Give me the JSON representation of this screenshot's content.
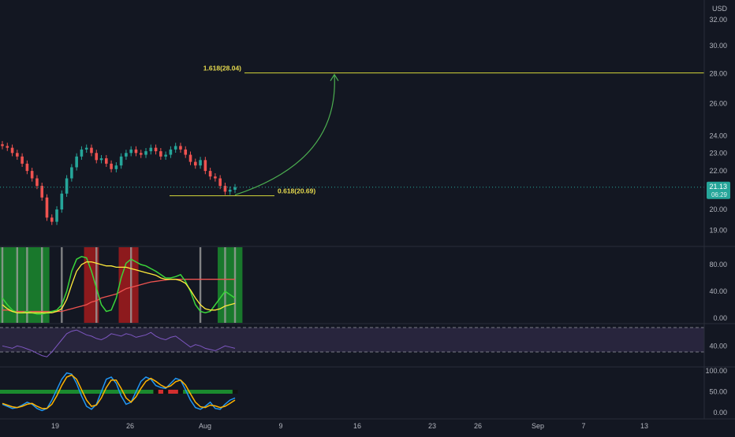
{
  "colors": {
    "background": "#131722",
    "border": "#2a2e39",
    "axis_text": "#b2b5be",
    "up": "#26a69a",
    "down": "#ef5350",
    "fib": "#d4d63a",
    "fib_text": "#e5d94e",
    "arrow": "#4caf50",
    "price_badge": "#26a69a",
    "rsi": "#7e57c2",
    "rsi_band": "#2b2740",
    "green_zone": "#1b8a2e",
    "red_zone": "#b71c1c",
    "gray_zone": "#9e9e9e",
    "stoch_k": "#2196f3",
    "stoch_d": "#ffb300",
    "ribbon_green": "#1b8a2e",
    "ribbon_red": "#d32f2f",
    "ribbon_black": "#111111"
  },
  "chart_data": {
    "type": "candlestick",
    "currency": "USD",
    "price_axis": {
      "ticks": [
        "32.00",
        "30.00",
        "28.00",
        "26.00",
        "24.00",
        "23.00",
        "22.00",
        "20.00",
        "19.00"
      ],
      "scale": "log"
    },
    "time_axis": {
      "labels": [
        "19",
        "26",
        "Aug",
        "9",
        "16",
        "23",
        "26",
        "Sep",
        "7",
        "13"
      ]
    },
    "last_price": {
      "value": "21.13",
      "countdown": "06:29"
    },
    "fib_levels": [
      {
        "label": "1.618(28.04)",
        "price": 28.04
      },
      {
        "label": "0.618(20.69)",
        "price": 20.69
      }
    ],
    "projection_arrow": {
      "from_price": 20.69,
      "to_price": 28.04
    },
    "price_path": [
      23.4,
      23.3,
      23.0,
      22.8,
      22.4,
      22.0,
      21.6,
      21.2,
      20.6,
      19.6,
      19.4,
      20.0,
      20.8,
      21.6,
      22.2,
      22.8,
      23.2,
      23.3,
      23.0,
      22.6,
      22.7,
      22.4,
      22.1,
      22.3,
      22.8,
      23.0,
      23.2,
      23.0,
      22.9,
      23.1,
      23.3,
      23.1,
      22.8,
      22.9,
      23.2,
      23.4,
      23.2,
      22.9,
      22.5,
      22.3,
      22.6,
      22.0,
      21.7,
      21.6,
      21.2,
      20.9,
      21.0,
      21.13
    ],
    "oscillator_panel": {
      "ticks": [
        "80.00",
        "40.00",
        "0.00"
      ],
      "green_zones": [
        [
          0,
          4
        ],
        [
          5,
          9
        ],
        [
          44,
          48
        ]
      ],
      "red_zones": [
        [
          17,
          19
        ],
        [
          24,
          27
        ]
      ],
      "gray_bars": [
        0,
        3,
        5,
        8,
        12,
        19,
        26,
        40,
        45,
        47
      ],
      "line_green": [
        30,
        20,
        12,
        8,
        8,
        10,
        8,
        6,
        6,
        8,
        10,
        12,
        20,
        40,
        70,
        88,
        92,
        90,
        70,
        45,
        20,
        10,
        12,
        30,
        60,
        82,
        88,
        84,
        80,
        78,
        74,
        70,
        65,
        60,
        60,
        62,
        65,
        55,
        40,
        20,
        10,
        8,
        10,
        20,
        30,
        40,
        35,
        30
      ],
      "line_yellow": [
        20,
        14,
        10,
        8,
        8,
        8,
        8,
        8,
        8,
        8,
        8,
        10,
        14,
        28,
        50,
        70,
        80,
        84,
        84,
        82,
        80,
        78,
        78,
        76,
        76,
        76,
        74,
        72,
        70,
        68,
        66,
        64,
        60,
        58,
        58,
        58,
        56,
        52,
        42,
        30,
        20,
        14,
        12,
        12,
        14,
        18,
        20,
        22
      ],
      "line_red": [
        12,
        12,
        10,
        10,
        10,
        10,
        10,
        10,
        10,
        10,
        10,
        10,
        10,
        12,
        14,
        16,
        18,
        20,
        24,
        26,
        30,
        32,
        34,
        36,
        40,
        44,
        46,
        48,
        50,
        52,
        54,
        55,
        56,
        57,
        58,
        58,
        58,
        58,
        58,
        58,
        58,
        58,
        58,
        58,
        58,
        58,
        58,
        58
      ]
    },
    "rsi_panel": {
      "ticks": [
        "40.00"
      ],
      "band": [
        30,
        70
      ],
      "values": [
        40,
        38,
        36,
        40,
        38,
        35,
        32,
        28,
        24,
        22,
        30,
        40,
        50,
        60,
        64,
        66,
        62,
        58,
        56,
        52,
        50,
        54,
        60,
        58,
        56,
        60,
        58,
        54,
        56,
        58,
        62,
        56,
        52,
        50,
        54,
        56,
        50,
        44,
        38,
        42,
        40,
        36,
        34,
        32,
        36,
        40,
        38,
        36
      ]
    },
    "stoch_panel": {
      "ticks": [
        "100.00",
        "50.00",
        "0.00"
      ],
      "k": [
        20,
        15,
        10,
        12,
        18,
        25,
        20,
        10,
        5,
        10,
        30,
        55,
        80,
        95,
        92,
        70,
        40,
        15,
        8,
        20,
        50,
        80,
        85,
        70,
        40,
        20,
        25,
        50,
        75,
        85,
        80,
        65,
        60,
        58,
        70,
        82,
        78,
        55,
        30,
        12,
        8,
        15,
        25,
        10,
        8,
        20,
        30,
        35
      ],
      "d": [
        22,
        18,
        14,
        12,
        15,
        20,
        22,
        15,
        10,
        10,
        20,
        40,
        65,
        85,
        90,
        80,
        55,
        30,
        15,
        18,
        35,
        60,
        78,
        78,
        58,
        35,
        25,
        38,
        58,
        75,
        82,
        75,
        66,
        60,
        64,
        74,
        78,
        66,
        45,
        25,
        14,
        12,
        18,
        16,
        12,
        15,
        22,
        30
      ],
      "ribbon_level": 50,
      "ribbon_states": [
        "g",
        "g",
        "g",
        "g",
        "g",
        "g",
        "g",
        "g",
        "g",
        "g",
        "g",
        "g",
        "g",
        "g",
        "g",
        "g",
        "g",
        "g",
        "g",
        "g",
        "g",
        "g",
        "g",
        "g",
        "g",
        "g",
        "g",
        "g",
        "g",
        "g",
        "g",
        "k",
        "r",
        "k",
        "r",
        "r",
        "k",
        "g",
        "g",
        "g",
        "g",
        "g",
        "g",
        "g",
        "g",
        "g",
        "g",
        "k"
      ]
    }
  }
}
